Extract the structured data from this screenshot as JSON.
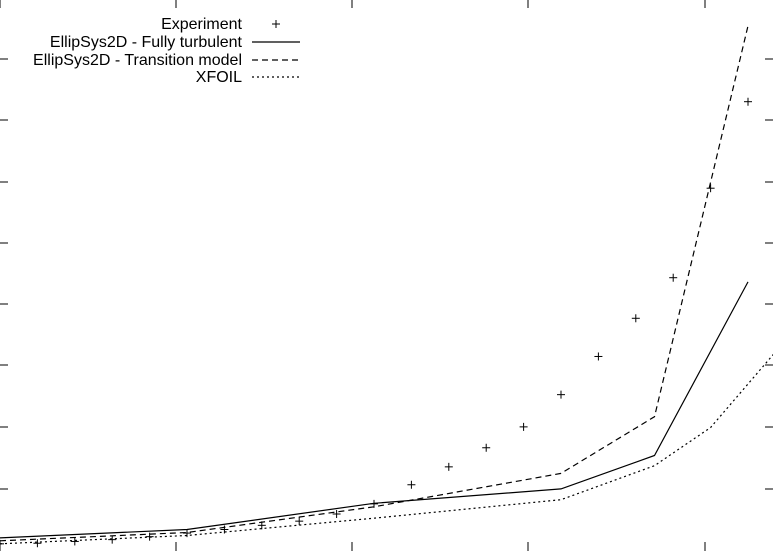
{
  "chart_data": {
    "type": "line",
    "title": "",
    "xlabel": "",
    "ylabel": "",
    "xlim": [
      0,
      20
    ],
    "ylim": [
      0,
      0.09
    ],
    "grid": false,
    "legend_position": "top-left",
    "series": [
      {
        "name": "Experiment",
        "style": "points",
        "color": "#000000",
        "x": [
          0,
          1,
          2,
          3,
          4,
          5,
          6,
          7,
          8,
          9,
          10,
          11,
          12,
          13,
          14,
          15,
          16,
          17,
          18,
          19,
          20
        ],
        "y": [
          0.0007,
          0.0008,
          0.0011,
          0.0014,
          0.0019,
          0.0025,
          0.0031,
          0.0038,
          0.0045,
          0.0057,
          0.0074,
          0.0106,
          0.0136,
          0.0168,
          0.0203,
          0.0257,
          0.0321,
          0.0385,
          0.0453,
          0.0603,
          0.0748
        ]
      },
      {
        "name": "EllipSys2D - Fully turbulent",
        "style": "solid",
        "color": "#000000",
        "x": [
          0,
          5,
          10,
          15,
          17.5,
          20
        ],
        "y": [
          0.0017,
          0.0031,
          0.0075,
          0.0099,
          0.0155,
          0.0446
        ]
      },
      {
        "name": "EllipSys2D - Transition model",
        "style": "dashed",
        "color": "#000000",
        "x": [
          0,
          5,
          10,
          15,
          17.5,
          20
        ],
        "y": [
          0.0012,
          0.0026,
          0.0069,
          0.0125,
          0.022,
          0.0875
        ]
      },
      {
        "name": "XFOIL",
        "style": "dotted",
        "color": "#000000",
        "x": [
          0,
          5,
          10,
          15,
          17.5,
          19,
          21
        ],
        "y": [
          0.0007,
          0.0021,
          0.005,
          0.0081,
          0.0138,
          0.0202,
          0.0348
        ]
      }
    ]
  }
}
